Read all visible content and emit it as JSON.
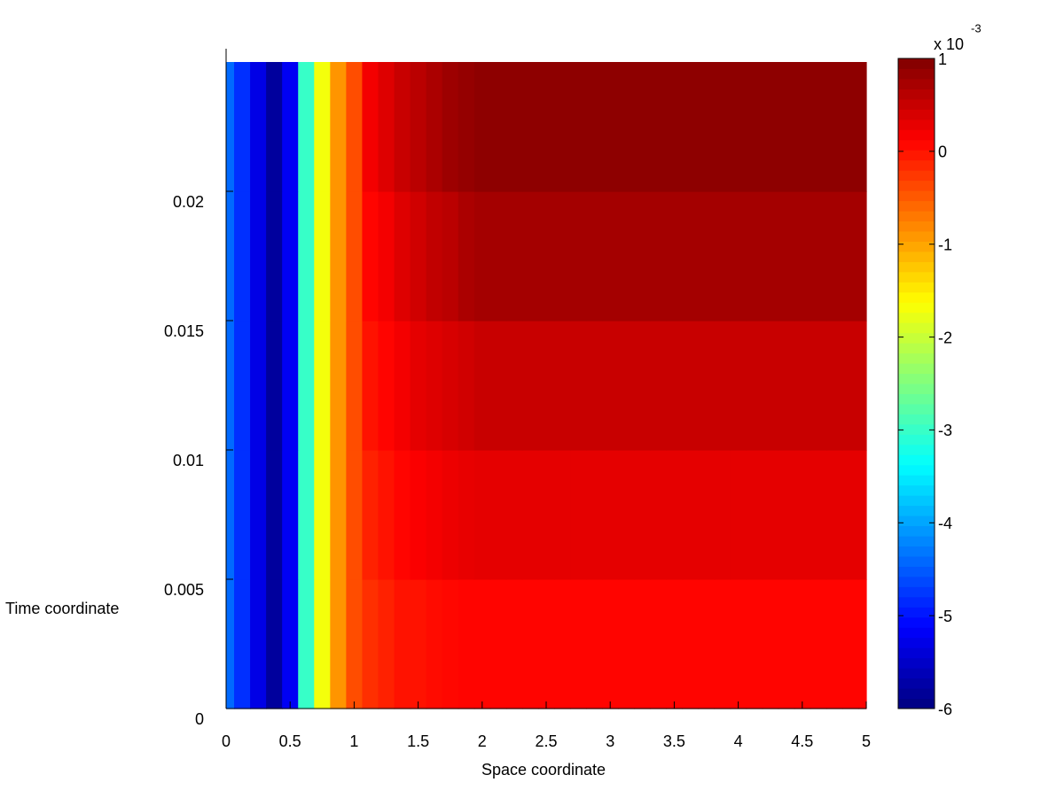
{
  "chart_data": {
    "type": "heatmap",
    "xlabel": "Space coordinate",
    "ylabel": "Time coordinate",
    "x": [
      0,
      0.125,
      0.25,
      0.375,
      0.5,
      0.625,
      0.75,
      0.875,
      1,
      1.125,
      1.25,
      1.375,
      1.5,
      1.625,
      1.75,
      1.875,
      2,
      2.125,
      2.25,
      2.375,
      2.5,
      2.625,
      2.75,
      2.875,
      3,
      3.125,
      3.25,
      3.375,
      3.5,
      3.625,
      3.75,
      3.875,
      4,
      4.125,
      4.25,
      4.375,
      4.5,
      4.625,
      4.75,
      4.875,
      5
    ],
    "y": [
      0.0025,
      0.0075,
      0.0125,
      0.0175,
      0.0225
    ],
    "z": [
      [
        -4.4,
        -4.8,
        -5.3,
        -5.8,
        -5.2,
        -3.0,
        -1.7,
        -0.9,
        -0.4,
        -0.2,
        -0.1,
        0,
        0,
        0.05,
        0.08,
        0.1,
        0.1,
        0.1,
        0.1,
        0.1,
        0.1,
        0.1,
        0.1,
        0.1,
        0.1,
        0.1,
        0.1,
        0.1,
        0.1,
        0.1,
        0.1,
        0.1,
        0.1,
        0.1,
        0.1,
        0.1,
        0.1,
        0.1,
        0.1,
        0.1,
        0.1
      ],
      [
        -4.4,
        -4.8,
        -5.3,
        -5.8,
        -5.2,
        -3.0,
        -1.7,
        -0.9,
        -0.4,
        -0.1,
        0,
        0.1,
        0.15,
        0.2,
        0.25,
        0.28,
        0.3,
        0.3,
        0.3,
        0.3,
        0.3,
        0.3,
        0.3,
        0.3,
        0.3,
        0.3,
        0.3,
        0.3,
        0.3,
        0.3,
        0.3,
        0.3,
        0.3,
        0.3,
        0.3,
        0.3,
        0.3,
        0.3,
        0.3,
        0.3,
        0.3
      ],
      [
        -4.4,
        -4.8,
        -5.3,
        -5.8,
        -5.2,
        -3.0,
        -1.7,
        -0.9,
        -0.4,
        0,
        0.1,
        0.2,
        0.3,
        0.35,
        0.4,
        0.45,
        0.5,
        0.5,
        0.5,
        0.5,
        0.5,
        0.5,
        0.5,
        0.5,
        0.5,
        0.5,
        0.5,
        0.5,
        0.5,
        0.5,
        0.5,
        0.5,
        0.5,
        0.5,
        0.5,
        0.5,
        0.5,
        0.5,
        0.5,
        0.5,
        0.5
      ],
      [
        -4.4,
        -4.8,
        -5.3,
        -5.8,
        -5.2,
        -3.0,
        -1.7,
        -0.9,
        -0.4,
        0.1,
        0.2,
        0.35,
        0.45,
        0.55,
        0.6,
        0.7,
        0.75,
        0.75,
        0.75,
        0.75,
        0.75,
        0.75,
        0.75,
        0.75,
        0.75,
        0.75,
        0.75,
        0.75,
        0.75,
        0.75,
        0.75,
        0.75,
        0.75,
        0.75,
        0.75,
        0.75,
        0.75,
        0.75,
        0.75,
        0.75,
        0.75
      ],
      [
        -4.4,
        -4.8,
        -5.3,
        -5.8,
        -5.2,
        -3.0,
        -1.7,
        -0.9,
        -0.4,
        0.2,
        0.35,
        0.5,
        0.6,
        0.7,
        0.8,
        0.85,
        0.9,
        0.9,
        0.9,
        0.9,
        0.9,
        0.9,
        0.9,
        0.9,
        0.9,
        0.9,
        0.9,
        0.9,
        0.9,
        0.9,
        0.9,
        0.9,
        0.9,
        0.9,
        0.9,
        0.9,
        0.9,
        0.9,
        0.9,
        0.9,
        0.9
      ]
    ],
    "xlim": [
      0,
      5
    ],
    "xticks": [
      0,
      0.5,
      1,
      1.5,
      2,
      2.5,
      3,
      3.5,
      4,
      4.5,
      5
    ],
    "ylim": [
      0,
      0.025
    ],
    "yticks": [
      0,
      0.005,
      0.01,
      0.015,
      0.02
    ],
    "colormap": "jet",
    "clim": [
      -6,
      1
    ],
    "cticks": [
      -6,
      -5,
      -4,
      -3,
      -2,
      -1,
      0,
      1
    ],
    "colorbar_multiplier": "x 10",
    "colorbar_exponent": "-3"
  }
}
